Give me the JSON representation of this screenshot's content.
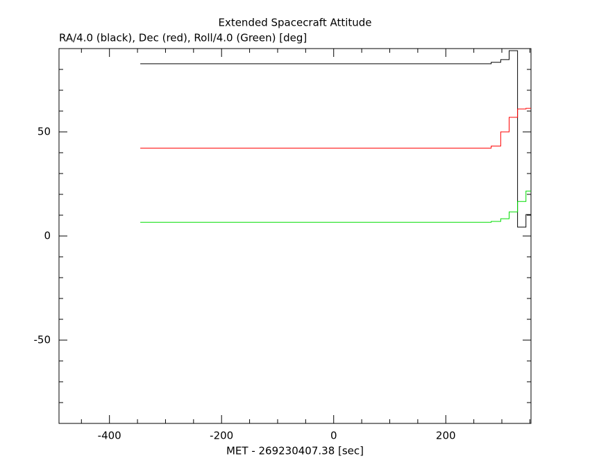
{
  "chart_data": {
    "type": "line",
    "drawstyle": "steps-post",
    "title": "Extended Spacecraft Attitude",
    "subtitle": "RA/4.0 (black), Dec (red), Roll/4.0 (Green) [deg]",
    "xlabel": "MET - 269230407.38 [sec]",
    "x": [
      -345,
      281,
      298,
      313,
      328,
      343,
      352
    ],
    "series": [
      {
        "color": "#000000",
        "values": [
          82.7,
          83.4,
          84.7,
          89,
          4.3,
          10.3,
          10.3
        ]
      },
      {
        "color": "#ff0000",
        "values": [
          42.2,
          43.2,
          50,
          57,
          61,
          61.3,
          61.3
        ]
      },
      {
        "color": "#00dd00",
        "values": [
          6.6,
          7,
          8.3,
          11.6,
          16.6,
          21.6,
          21.6
        ]
      }
    ],
    "xlim": [
      -490,
      352
    ],
    "ylim": [
      -90,
      90
    ],
    "xticks": [
      -400,
      -200,
      0,
      200
    ],
    "yticks": [
      -50,
      0,
      50
    ],
    "xminorticks": [
      -450,
      -350,
      -300,
      -250,
      -150,
      -100,
      -50,
      50,
      100,
      150,
      250,
      300,
      350
    ],
    "yminorticks": [
      -80,
      -70,
      -60,
      -40,
      -30,
      -20,
      -10,
      10,
      20,
      30,
      40,
      60,
      70,
      80
    ]
  }
}
